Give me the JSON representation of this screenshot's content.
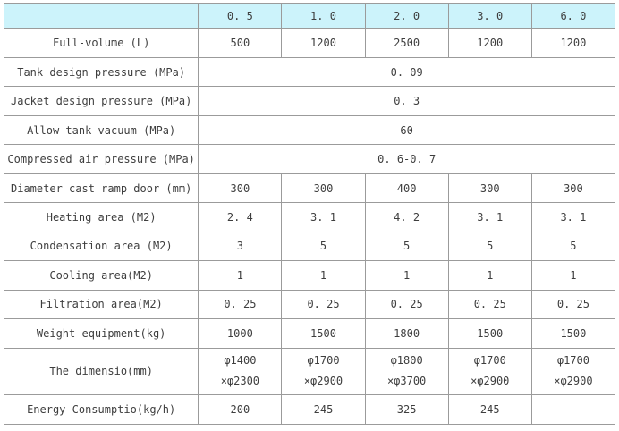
{
  "table": {
    "header": {
      "corner": "",
      "columns": [
        "0. 5",
        "1. 0",
        "2. 0",
        "3. 0",
        "6. 0"
      ]
    },
    "rows": [
      {
        "label": "Full-volume (L)",
        "type": "values",
        "values": [
          "500",
          "1200",
          "2500",
          "1200",
          "1200"
        ]
      },
      {
        "label": "Tank design pressure (MPa)",
        "type": "merged",
        "value": "0. 09"
      },
      {
        "label": "Jacket design pressure (MPa)",
        "type": "merged",
        "value": "0. 3"
      },
      {
        "label": "Allow tank vacuum (MPa)",
        "type": "merged",
        "value": "60"
      },
      {
        "label": "Compressed air pressure (MPa)",
        "type": "merged",
        "value": "0. 6-0. 7"
      },
      {
        "label": "Diameter cast ramp door (mm)",
        "type": "values",
        "values": [
          "300",
          "300",
          "400",
          "300",
          "300"
        ]
      },
      {
        "label": "Heating area (M2)",
        "type": "values",
        "values": [
          "2. 4",
          "3. 1",
          "4. 2",
          "3. 1",
          "3. 1"
        ]
      },
      {
        "label": "Condensation area (M2)",
        "type": "values",
        "values": [
          "3",
          "5",
          "5",
          "5",
          "5"
        ]
      },
      {
        "label": "Cooling area(M2)",
        "type": "values",
        "values": [
          "1",
          "1",
          "1",
          "1",
          "1"
        ]
      },
      {
        "label": "Filtration area(M2)",
        "type": "values",
        "values": [
          "0. 25",
          "0. 25",
          "0. 25",
          "0. 25",
          "0. 25"
        ]
      },
      {
        "label": "Weight equipment(kg)",
        "type": "values",
        "values": [
          "1000",
          "1500",
          "1800",
          "1500",
          "1500"
        ]
      },
      {
        "label": "The dimensio(mm)",
        "type": "twoline",
        "values": [
          [
            "φ1400",
            "×φ2300"
          ],
          [
            "φ1700",
            "×φ2900"
          ],
          [
            "φ1800",
            "×φ3700"
          ],
          [
            "φ1700",
            "×φ2900"
          ],
          [
            "φ1700",
            "×φ2900"
          ]
        ]
      },
      {
        "label": "Energy Consumptio(kg/h)",
        "type": "values",
        "values": [
          "200",
          "245",
          "325",
          "245",
          ""
        ]
      }
    ],
    "colors": {
      "header_bg": "#ccf3fb",
      "border": "#9b9b9b",
      "text": "#3e3e3e"
    }
  }
}
